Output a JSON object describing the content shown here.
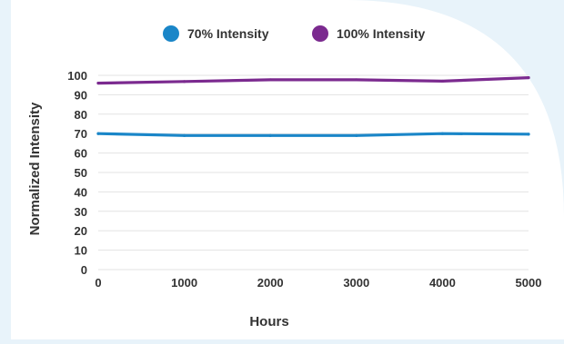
{
  "chart_data": {
    "type": "line",
    "xlabel": "Hours",
    "ylabel": "Normalized Intensity",
    "x": [
      0,
      1000,
      2000,
      3000,
      4000,
      5000
    ],
    "xlim": [
      0,
      5000
    ],
    "ylim": [
      0,
      100
    ],
    "x_ticks": [
      "0",
      "1000",
      "2000",
      "3000",
      "4000",
      "5000"
    ],
    "y_ticks": [
      "0",
      "10",
      "20",
      "30",
      "40",
      "50",
      "60",
      "70",
      "80",
      "90",
      "100"
    ],
    "grid": "horizontal",
    "legend_position": "top-center",
    "series": [
      {
        "name": "70% Intensity",
        "color": "#1a86c8",
        "values": [
          70,
          69,
          69,
          69,
          70,
          69.7
        ]
      },
      {
        "name": "100% Intensity",
        "color": "#7b2a8f",
        "values": [
          96,
          96.8,
          97.7,
          97.7,
          97,
          98.8
        ]
      }
    ]
  }
}
